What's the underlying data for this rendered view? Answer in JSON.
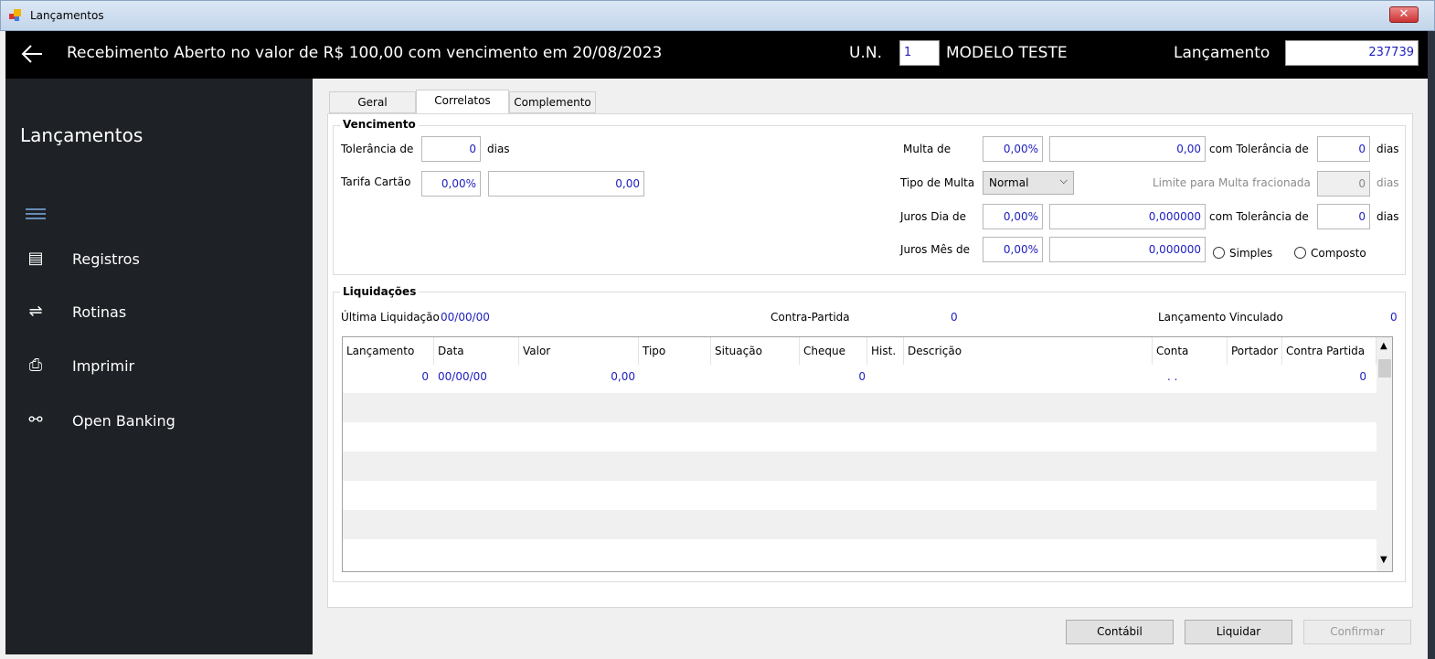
{
  "window": {
    "title": "Lançamentos",
    "close": "✕"
  },
  "header": {
    "title": "Recebimento Aberto no valor de R$ 100,00 com vencimento em 20/08/2023",
    "un_label": "U.N.",
    "un_value": "1",
    "company": "MODELO TESTE",
    "lanc_label": "Lançamento",
    "lanc_value": "237739"
  },
  "sidebar": {
    "title": "Lançamentos",
    "items": [
      {
        "label": "Registros",
        "icon": "registros-icon"
      },
      {
        "label": "Rotinas",
        "icon": "exchange-icon"
      },
      {
        "label": "Imprimir",
        "icon": "printer-icon"
      },
      {
        "label": "Open Banking",
        "icon": "bank-icon"
      }
    ]
  },
  "tabs": [
    {
      "label": "Geral"
    },
    {
      "label": "Correlatos",
      "selected": true
    },
    {
      "label": "Complemento"
    }
  ],
  "vencimento": {
    "title": "Vencimento",
    "tolerancia_label": "Tolerância de",
    "tolerancia_value": "0",
    "dias": "dias",
    "tarifa_label": "Tarifa Cartão",
    "tarifa_pct": "0,00%",
    "tarifa_value": "0,00",
    "multa_label": "Multa de",
    "multa_pct": "0,00%",
    "multa_value": "0,00",
    "com_tol": "com Tolerância de",
    "multa_tol": "0",
    "tipo_multa_label": "Tipo de Multa",
    "tipo_multa_value": "Normal",
    "limite_label": "Limite para Multa fracionada",
    "limite_value": "0",
    "juros_dia_label": "Juros Dia de",
    "juros_dia_pct": "0,00%",
    "juros_dia_value": "0,000000",
    "juros_dia_tol": "0",
    "juros_mes_label": "Juros Mês de",
    "juros_mes_pct": "0,00%",
    "juros_mes_value": "0,000000",
    "simples": "Simples",
    "composto": "Composto"
  },
  "liquidacoes": {
    "title": "Liquidações",
    "ultima_label": "Última Liquidação",
    "ultima_value": "00/00/00",
    "contra_label": "Contra-Partida",
    "contra_value": "0",
    "vinc_label": "Lançamento Vinculado",
    "vinc_value": "0",
    "columns": [
      "Lançamento",
      "Data",
      "Valor",
      "Tipo",
      "Situação",
      "Cheque",
      "Hist.",
      "Descrição",
      "Conta",
      "Portador",
      "Contra Partida"
    ],
    "rows": [
      {
        "lancamento": "0",
        "data": "00/00/00",
        "valor": "0,00",
        "cheque": "0",
        "conta": ". .",
        "contra_partida": "0"
      }
    ]
  },
  "buttons": {
    "contabil": "Contábil",
    "liquidar": "Liquidar",
    "confirmar": "Confirmar"
  }
}
